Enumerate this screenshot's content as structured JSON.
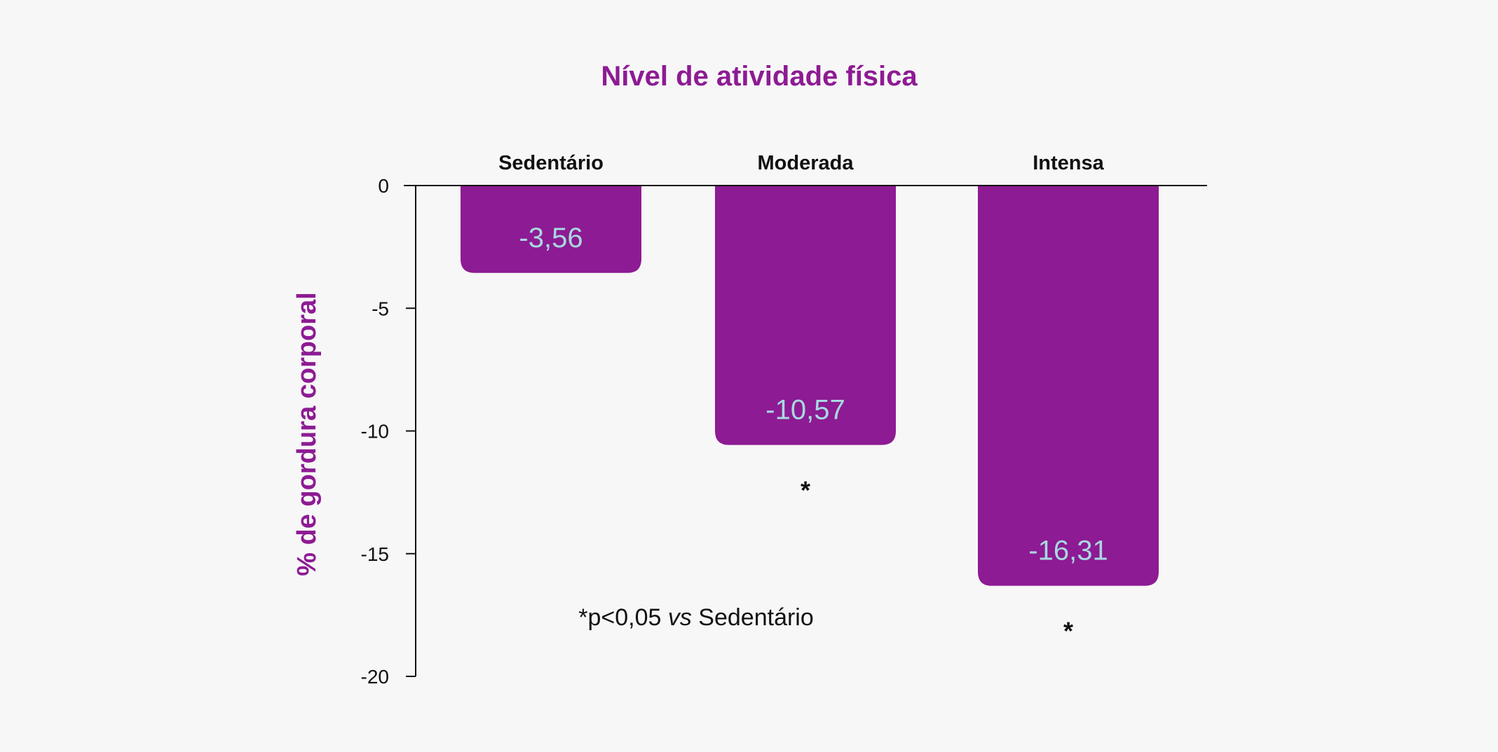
{
  "colors": {
    "background": "#f7f7f7",
    "bar": "#8d1b93",
    "title": "#8d1b93",
    "data_label": "#a9d8e0",
    "axis": "#111111"
  },
  "chart_data": {
    "type": "bar",
    "title": "Nível de atividade física",
    "ylabel": "% de gordura corporal",
    "xlabel": "",
    "categories": [
      "Sedentário",
      "Moderada",
      "Intensa"
    ],
    "values": [
      -3.56,
      -10.57,
      -16.31
    ],
    "data_labels": [
      "-3,56",
      "-10,57",
      "-16,31"
    ],
    "significance": [
      "",
      "*",
      "*"
    ],
    "ylim": [
      -20,
      0
    ],
    "yticks": [
      0,
      -5,
      -10,
      -15,
      -20
    ],
    "ytick_labels": [
      "0",
      "-5",
      "-10",
      "-15",
      "-20"
    ],
    "category_axis_position": "top",
    "grid": false,
    "legend": "none",
    "footnote": {
      "prefix": "*p<0,05 ",
      "italic": "vs",
      "suffix": " Sedentário"
    }
  }
}
